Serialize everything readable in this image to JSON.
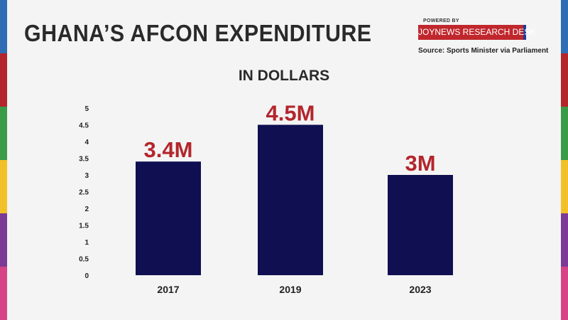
{
  "header": {
    "title": "GHANA’S AFCON EXPENDITURE",
    "powered_by": "POWERED BY",
    "brand": "JOYNEWS RESEARCH DESK",
    "source": "Source: Sports Minister via Parliament"
  },
  "colors": {
    "bar": "#0f0f52",
    "data_label": "#b3262c",
    "edge_stripes": [
      "#2f6db5",
      "#b3262c",
      "#3a9b48",
      "#f2c029",
      "#7b3a96",
      "#d64487"
    ]
  },
  "chart_data": {
    "type": "bar",
    "title": "GHANA’S AFCON EXPENDITURE",
    "subtitle": "IN DOLLARS",
    "categories": [
      "2017",
      "2019",
      "2023"
    ],
    "values": [
      3.4,
      4.5,
      3
    ],
    "data_labels": [
      "3.4M",
      "4.5M",
      "3M"
    ],
    "yticks": [
      "0",
      "0.5",
      "1",
      "1.5",
      "2",
      "2.5",
      "3",
      "3.5",
      "4",
      "4.5",
      "5"
    ],
    "ylim": [
      0,
      5
    ],
    "grid": false,
    "legend": "none"
  }
}
